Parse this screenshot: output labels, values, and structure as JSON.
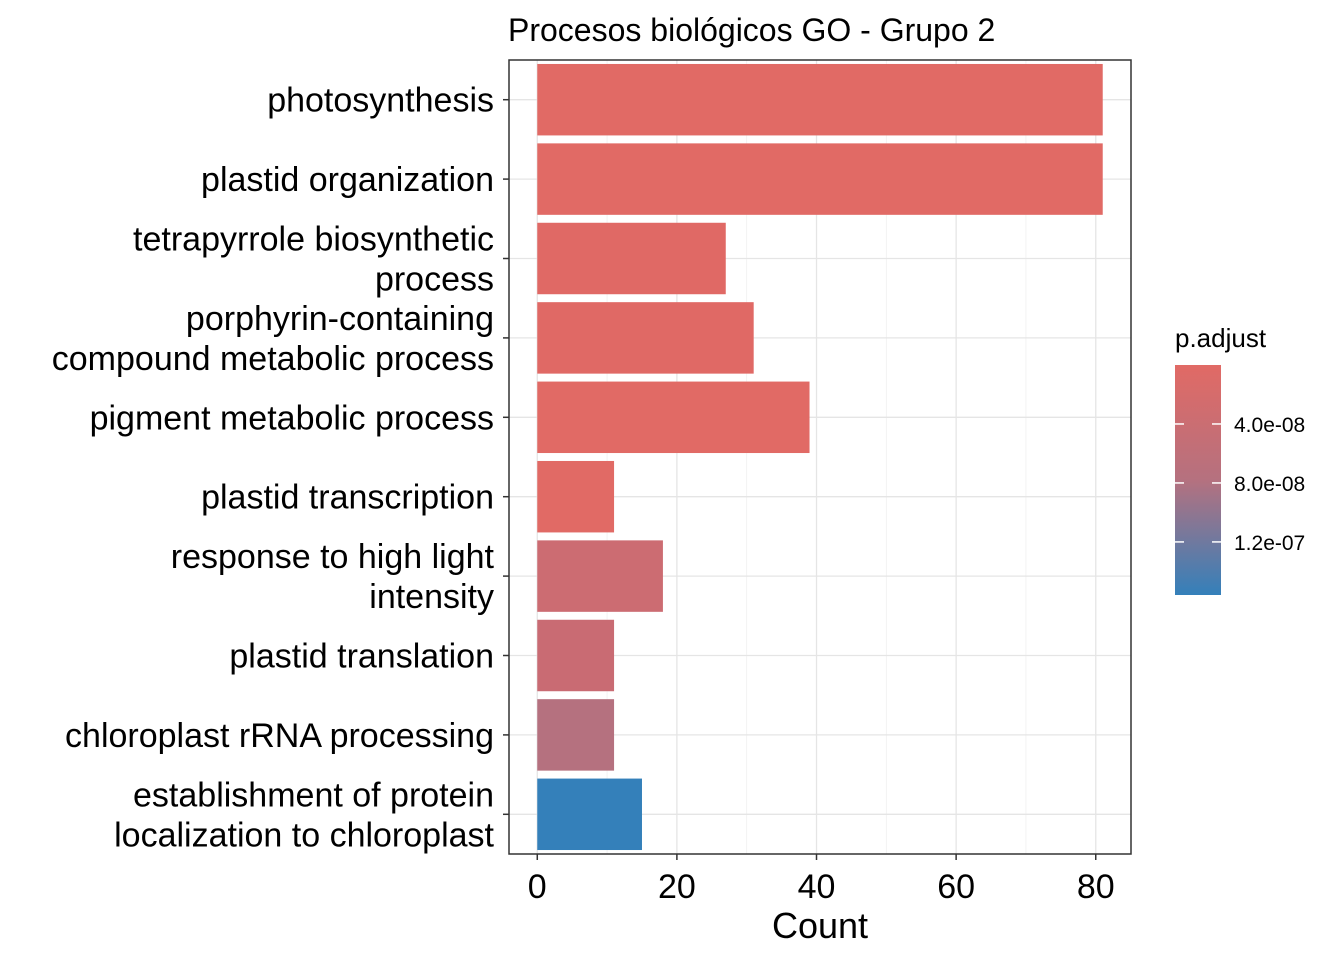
{
  "chart_data": {
    "type": "bar",
    "orientation": "horizontal",
    "title": "Procesos biológicos GO - Grupo 2",
    "xlabel": "Count",
    "ylabel": "",
    "xlim": [
      -4.05,
      85.05
    ],
    "x_ticks": [
      0,
      20,
      40,
      60,
      80
    ],
    "x_tick_labels": [
      "0",
      "20",
      "40",
      "60",
      "80"
    ],
    "grid": true,
    "categories": [
      [
        "photosynthesis"
      ],
      [
        "plastid organization"
      ],
      [
        "tetrapyrrole biosynthetic",
        "process"
      ],
      [
        "porphyrin-containing",
        "compound metabolic process"
      ],
      [
        "pigment metabolic process"
      ],
      [
        "plastid transcription"
      ],
      [
        "response to high light",
        "intensity"
      ],
      [
        "plastid translation"
      ],
      [
        "chloroplast rRNA processing"
      ],
      [
        "establishment of protein",
        "localization to chloroplast"
      ]
    ],
    "values": [
      81,
      81,
      27,
      31,
      39,
      11,
      18,
      11,
      11,
      15
    ],
    "p_adjust": [
      1e-30,
      1e-25,
      1e-14,
      1e-14,
      1e-14,
      1e-12,
      1.6e-08,
      1.6e-08,
      3.2e-08,
      1.48e-07
    ],
    "bar_colors": [
      "#E16A65",
      "#E16A65",
      "#E06965",
      "#E06965",
      "#E16A65",
      "#E16A65",
      "#CC6C72",
      "#C96B73",
      "#B5717F",
      "#3480BA"
    ],
    "legend": {
      "title": "p.adjust",
      "position": "right",
      "range": [
        1e-30,
        1.56e-07
      ],
      "ticks": [
        4e-08,
        8e-08,
        1.2e-07
      ],
      "tick_labels": [
        "4.0e-08",
        "8.0e-08",
        "1.2e-07"
      ],
      "color_low": "#E16A65",
      "color_high": "#3480BA"
    }
  }
}
